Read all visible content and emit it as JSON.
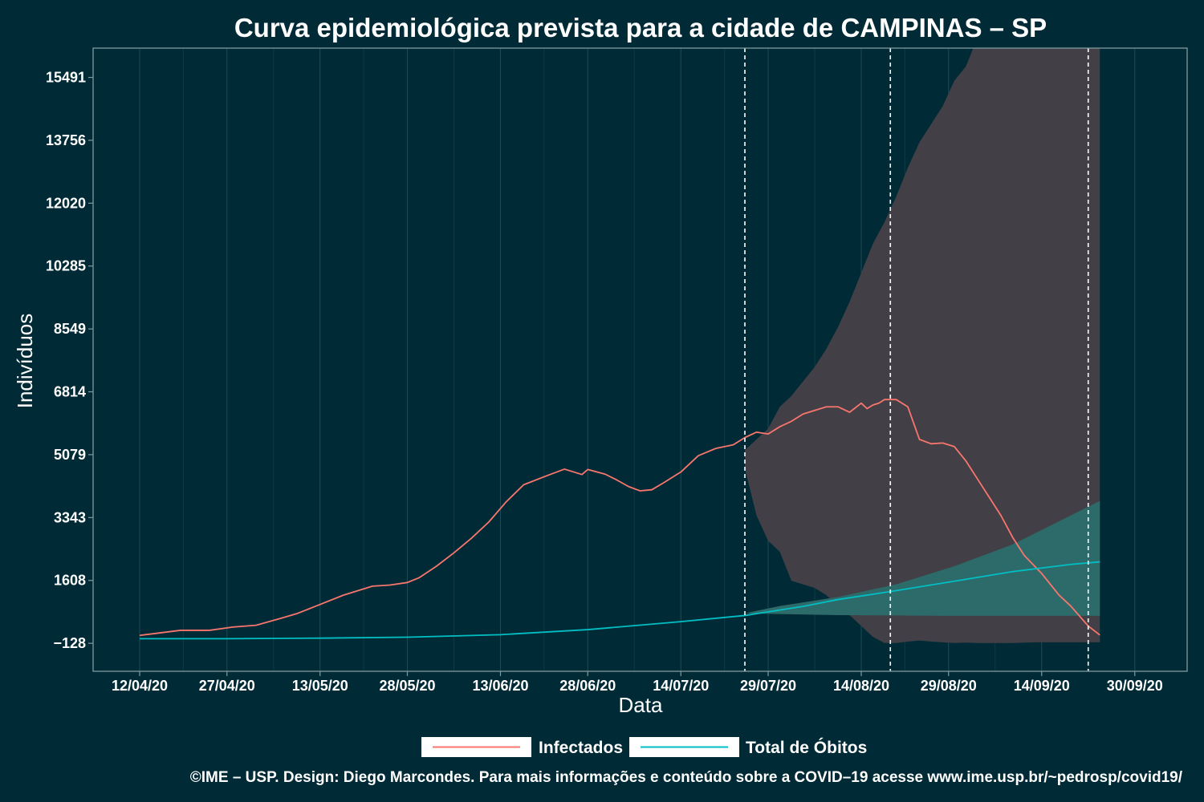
{
  "chart_data": {
    "type": "line",
    "title": "Curva epidemiológica prevista para a cidade de CAMPINAS – SP",
    "xlabel": "Data",
    "ylabel": "Indivíduos",
    "x_tick_labels": [
      "12/04/20",
      "27/04/20",
      "13/05/20",
      "28/05/20",
      "13/06/20",
      "28/06/20",
      "14/07/20",
      "29/07/20",
      "14/08/20",
      "29/08/20",
      "14/09/20",
      "30/09/20"
    ],
    "x_tick_days": [
      0,
      15,
      31,
      46,
      62,
      77,
      93,
      108,
      124,
      139,
      155,
      171
    ],
    "y_tick_labels": [
      "−128",
      "1608",
      "3343",
      "5079",
      "6814",
      "8549",
      "10285",
      "12020",
      "13756",
      "15491"
    ],
    "y_tick_values": [
      -128,
      1608,
      3343,
      5079,
      6814,
      8549,
      10285,
      12020,
      13756,
      15491
    ],
    "xlim_days": [
      -8,
      180
    ],
    "ylim": [
      -900,
      16300
    ],
    "vlines_days": [
      104,
      129,
      163
    ],
    "grid": true,
    "legend_position": "bottom",
    "colors": {
      "background": "#002b36",
      "infectados": "#f8766d",
      "obitos": "#00bfc4",
      "band_infectados": "#433f46",
      "band_obitos": "#2d6b6b",
      "vline": "#ffffff"
    },
    "series": [
      {
        "name": "Infectados",
        "x": [
          0,
          3,
          7,
          12,
          16,
          20,
          24,
          27,
          30,
          35,
          40,
          43,
          46,
          48,
          51,
          54,
          57,
          60,
          63,
          66,
          70,
          73,
          76,
          77,
          80,
          82,
          84,
          86,
          88,
          90,
          93,
          96,
          99,
          102,
          104,
          106,
          108,
          110,
          112,
          114,
          116,
          118,
          120,
          122,
          124,
          125,
          126,
          127,
          128,
          130,
          132,
          134,
          136,
          138,
          140,
          142,
          144,
          146,
          148,
          150,
          152,
          155,
          158,
          160,
          163,
          165
        ],
        "y": [
          90,
          150,
          230,
          230,
          320,
          370,
          550,
          690,
          880,
          1200,
          1450,
          1480,
          1550,
          1680,
          2000,
          2370,
          2770,
          3220,
          3780,
          4250,
          4500,
          4680,
          4530,
          4670,
          4540,
          4380,
          4200,
          4080,
          4110,
          4300,
          4600,
          5050,
          5250,
          5350,
          5550,
          5700,
          5650,
          5850,
          6000,
          6200,
          6300,
          6400,
          6400,
          6250,
          6500,
          6350,
          6450,
          6500,
          6600,
          6600,
          6400,
          5500,
          5380,
          5400,
          5300,
          4900,
          4400,
          3900,
          3400,
          2800,
          2300,
          1800,
          1200,
          900,
          350,
          100
        ]
      },
      {
        "name": "Total de Óbitos",
        "x": [
          0,
          15,
          31,
          46,
          62,
          77,
          93,
          104,
          108,
          114,
          120,
          129,
          139,
          150,
          160,
          165
        ],
        "y": [
          0,
          0,
          15,
          40,
          110,
          250,
          470,
          640,
          740,
          890,
          1080,
          1300,
          1560,
          1850,
          2050,
          2120
        ]
      }
    ],
    "band_infectados": {
      "x": [
        104,
        106,
        108,
        110,
        112,
        114,
        116,
        118,
        120,
        122,
        124,
        126,
        128,
        130,
        132,
        134,
        136,
        138,
        140,
        142,
        144,
        146,
        148,
        150,
        152,
        154,
        156,
        158,
        160,
        162,
        164,
        165
      ],
      "upper": [
        5200,
        5500,
        5800,
        6400,
        6700,
        7100,
        7500,
        8000,
        8600,
        9300,
        10100,
        10900,
        11500,
        12200,
        13000,
        13700,
        14200,
        14700,
        15400,
        15800,
        16600,
        17200,
        17700,
        18200,
        18700,
        19100,
        19600,
        19900,
        19900,
        20000,
        19800,
        19700
      ],
      "lower": [
        4700,
        3400,
        2700,
        2400,
        1600,
        1500,
        1400,
        1200,
        900,
        650,
        350,
        50,
        -120,
        -120,
        -80,
        -50,
        -80,
        -100,
        -120,
        -110,
        -120,
        -120,
        -120,
        -120,
        -110,
        -100,
        -100,
        -100,
        -100,
        -100,
        -100,
        -100
      ]
    },
    "band_obitos": {
      "x": [
        104,
        110,
        120,
        130,
        140,
        150,
        160,
        165
      ],
      "upper": [
        700,
        900,
        1150,
        1500,
        2000,
        2600,
        3400,
        3800
      ],
      "lower": [
        700,
        680,
        650,
        640,
        630,
        630,
        630,
        630
      ]
    }
  },
  "legend": {
    "infectados": "Infectados",
    "obitos": "Total de Óbitos"
  },
  "caption": "©IME – USP. Design: Diego Marcondes. Para mais informações e conteúdo sobre a COVID–19 acesse www.ime.usp.br/~pedrosp/covid19/"
}
